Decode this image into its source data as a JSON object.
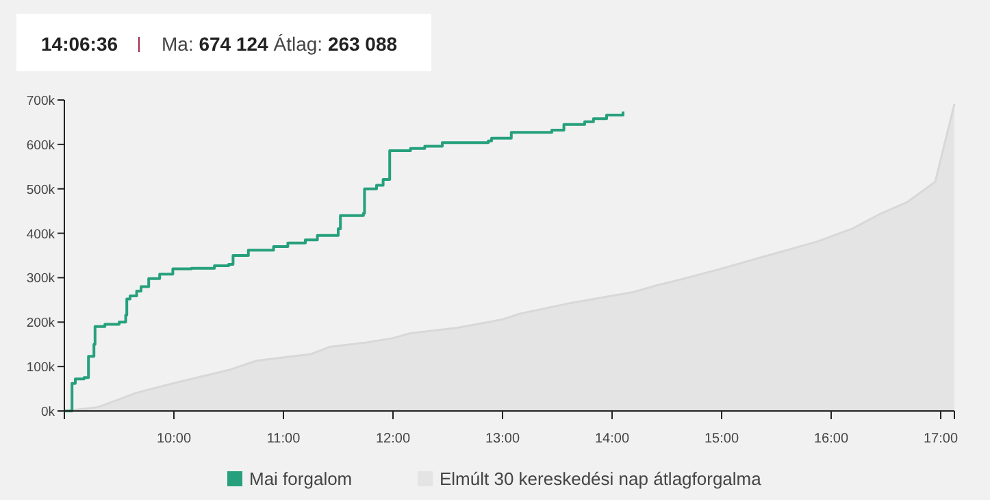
{
  "chart_data": {
    "type": "step",
    "title": "14:06:36",
    "subtitle": "Ma: 674 124 Átlag: 263 088",
    "xlim": [
      9,
      17.125
    ],
    "xticks": [
      {
        "value": 9,
        "label": null
      },
      {
        "value": 10,
        "label": "10:00"
      },
      {
        "value": 11,
        "label": "11:00"
      },
      {
        "value": 12,
        "label": "12:00"
      },
      {
        "value": 13,
        "label": "13:00"
      },
      {
        "value": 14,
        "label": "14:00"
      },
      {
        "value": 15,
        "label": "15:00"
      },
      {
        "value": 16,
        "label": "16:00"
      },
      {
        "value": 17,
        "label": "17:00"
      },
      {
        "value": 17.125,
        "label": null
      }
    ],
    "ylim": [
      0,
      700000
    ],
    "yticks": [
      {
        "value": 0,
        "label": "0k"
      },
      {
        "value": 100000,
        "label": "100k"
      },
      {
        "value": 200000,
        "label": "200k"
      },
      {
        "value": 300000,
        "label": "300k"
      },
      {
        "value": 400000,
        "label": "400k"
      },
      {
        "value": 500000,
        "label": "500k"
      },
      {
        "value": 600000,
        "label": "600k"
      },
      {
        "value": 700000,
        "label": "700k"
      }
    ],
    "grid": false,
    "legend": "bottom",
    "series": [
      {
        "name": "Mai forgalom",
        "color": "#26a07c",
        "x": [
          9,
          9.06,
          9.07,
          9.1,
          9.18,
          9.22,
          9.27,
          9.28,
          9.37,
          9.5,
          9.56,
          9.57,
          9.6,
          9.66,
          9.7,
          9.77,
          9.87,
          9.99,
          10.16,
          10.37,
          10.5,
          10.54,
          10.68,
          10.91,
          11.04,
          11.2,
          11.31,
          11.5,
          11.52,
          11.73,
          11.74,
          11.85,
          11.91,
          11.97,
          12.16,
          12.29,
          12.45,
          12.87,
          12.9,
          13.08,
          13.45,
          13.56,
          13.75,
          13.83,
          13.95,
          14.1
        ],
        "values": [
          0,
          0,
          62000,
          72000,
          75000,
          123000,
          150000,
          190000,
          195000,
          200000,
          216000,
          252000,
          259000,
          270000,
          280000,
          298000,
          308000,
          320000,
          321000,
          327000,
          330000,
          350000,
          362000,
          370000,
          378000,
          385000,
          395000,
          410000,
          440000,
          445000,
          500000,
          508000,
          521000,
          586000,
          591000,
          596000,
          604000,
          608000,
          614000,
          627000,
          632000,
          645000,
          651000,
          658000,
          666000,
          674000
        ]
      },
      {
        "name": "Elmúlt 30 kereskedési nap átlagforgalma",
        "type": "area",
        "color": "#e4e4e4",
        "x": [
          9,
          9.3,
          9.66,
          9.99,
          10.5,
          10.75,
          11.08,
          11.25,
          11.42,
          11.75,
          12,
          12.16,
          12.58,
          13,
          13.16,
          13.62,
          14.2,
          14.41,
          14.58,
          14.95,
          15.45,
          15.87,
          16.2,
          16.45,
          16.7,
          16.95,
          17.125
        ],
        "values": [
          0,
          8000,
          41000,
          62000,
          92000,
          113000,
          123000,
          128000,
          144000,
          154000,
          164000,
          175000,
          187000,
          206000,
          219000,
          243000,
          268000,
          283000,
          293000,
          317000,
          352000,
          381000,
          411000,
          444000,
          471000,
          516000,
          691000
        ]
      }
    ]
  }
}
